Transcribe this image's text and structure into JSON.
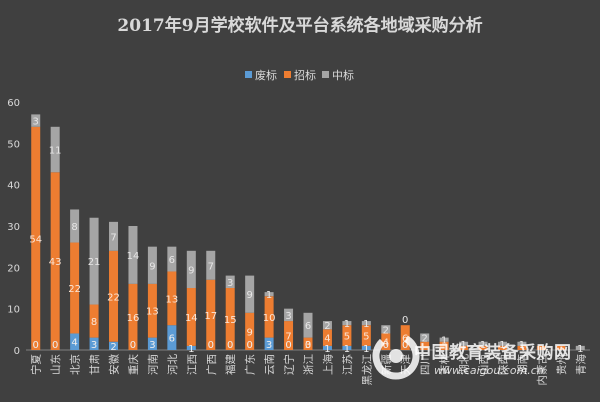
{
  "chart_data": {
    "type": "bar",
    "stacked": true,
    "title": "2017年9月学校软件及平台系统各地域采购分析",
    "categories": [
      "宁夏",
      "山东",
      "北京",
      "甘肃",
      "安徽",
      "重庆",
      "河南",
      "河北",
      "江西",
      "广西",
      "福建",
      "广东",
      "云南",
      "辽宁",
      "浙江",
      "上海",
      "江苏",
      "黑龙江",
      "新疆",
      "天津",
      "四川",
      "吉林",
      "湖北",
      "山西",
      "陕西",
      "湖南",
      "内蒙古",
      "贵州",
      "青海"
    ],
    "series": [
      {
        "name": "废标",
        "color": "#5B9BD5",
        "values": [
          0,
          0,
          4,
          3,
          2,
          0,
          3,
          6,
          1,
          0,
          0,
          0,
          3,
          0,
          0,
          1,
          1,
          1,
          0,
          0,
          0,
          0,
          0,
          0,
          0,
          0,
          0,
          0,
          0
        ]
      },
      {
        "name": "招标",
        "color": "#ED7D31",
        "values": [
          54,
          43,
          22,
          8,
          22,
          16,
          13,
          13,
          14,
          17,
          15,
          9,
          10,
          7,
          3,
          4,
          5,
          5,
          4,
          6,
          2,
          2,
          1,
          1,
          1,
          1,
          1,
          1,
          0
        ]
      },
      {
        "name": "中标",
        "color": "#A5A5A5",
        "values": [
          3,
          11,
          8,
          21,
          7,
          14,
          9,
          6,
          9,
          7,
          3,
          9,
          1,
          3,
          6,
          2,
          1,
          1,
          2,
          0,
          2,
          1,
          1,
          1,
          1,
          1,
          0,
          0,
          1
        ]
      }
    ],
    "data_labels": [
      [
        "0",
        "0",
        "4",
        "3",
        "2",
        "0",
        "3",
        "6",
        "1",
        "0",
        "0",
        "0",
        "3",
        "0",
        "0",
        "1",
        "1",
        "1",
        "0",
        "0",
        "",
        "",
        "",
        "",
        "",
        "",
        "",
        "",
        ""
      ],
      [
        "54",
        "43",
        "22",
        "8",
        "22",
        "16",
        "13",
        "13",
        "14",
        "17",
        "15",
        "9",
        "10",
        "7",
        "3",
        "4",
        "5",
        "5",
        "4",
        "6",
        "",
        "",
        "",
        "",
        "",
        "",
        "",
        "",
        ""
      ],
      [
        "3",
        "11",
        "8",
        "21",
        "7",
        "14",
        "9",
        "6",
        "9",
        "7",
        "3",
        "9",
        "1",
        "3",
        "6",
        "2",
        "1",
        "1",
        "2",
        "0",
        "2",
        "1",
        "1",
        "1",
        "1",
        "1",
        "",
        "",
        "1"
      ]
    ],
    "ylim": [
      0,
      60
    ],
    "yticks": [
      0,
      10,
      20,
      30,
      40,
      50,
      60
    ],
    "legend_position": "top-center",
    "grid": false
  },
  "colors": {
    "background": "#404040",
    "text": "#D9D9D9",
    "axis": "#7F7F7F"
  },
  "watermark": {
    "name": "中国教育装备采购网",
    "url": "www.caigou.com.cn"
  }
}
